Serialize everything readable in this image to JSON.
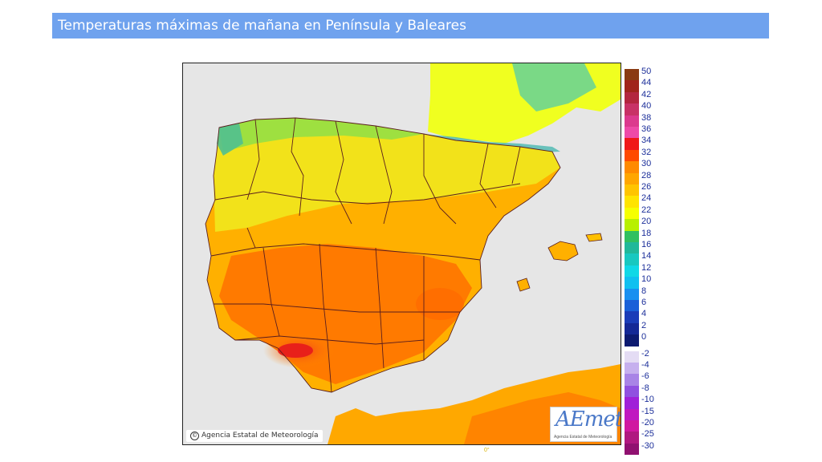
{
  "header": {
    "title": "Temperaturas máximas de mañana en Península y Baleares"
  },
  "map": {
    "credit": "Agencia Estatal de Meteorología",
    "logo_text": "AEmet",
    "logo_subtitle": "Agencia Estatal de Meteorología",
    "bottom_mark": "0°"
  },
  "legend": {
    "positive": [
      {
        "label": "50",
        "color": "#8a3a12"
      },
      {
        "label": "44",
        "color": "#a0241c"
      },
      {
        "label": "42",
        "color": "#b3263f"
      },
      {
        "label": "40",
        "color": "#c83266"
      },
      {
        "label": "38",
        "color": "#dc3a8e"
      },
      {
        "label": "36",
        "color": "#ee4aa8"
      },
      {
        "label": "34",
        "color": "#f01818"
      },
      {
        "label": "32",
        "color": "#ff4a00"
      },
      {
        "label": "30",
        "color": "#ff8a00"
      },
      {
        "label": "28",
        "color": "#ffa600"
      },
      {
        "label": "26",
        "color": "#ffc400"
      },
      {
        "label": "24",
        "color": "#ffe400"
      },
      {
        "label": "22",
        "color": "#f6ff00"
      },
      {
        "label": "20",
        "color": "#b8f000"
      },
      {
        "label": "18",
        "color": "#30c060"
      },
      {
        "label": "16",
        "color": "#20b89a"
      },
      {
        "label": "14",
        "color": "#18c8c0"
      },
      {
        "label": "12",
        "color": "#10d8e6"
      },
      {
        "label": "10",
        "color": "#10c0f0"
      },
      {
        "label": "8",
        "color": "#1890f0"
      },
      {
        "label": "6",
        "color": "#1a60d8"
      },
      {
        "label": "4",
        "color": "#1a3cb8"
      },
      {
        "label": "2",
        "color": "#142896"
      },
      {
        "label": "0",
        "color": "#0c1a70"
      }
    ],
    "negative": [
      {
        "label": "-2",
        "color": "#e4dcf4"
      },
      {
        "label": "-4",
        "color": "#c6b0ee"
      },
      {
        "label": "-6",
        "color": "#a884e6"
      },
      {
        "label": "-8",
        "color": "#9050e0"
      },
      {
        "label": "-10",
        "color": "#a020d8"
      },
      {
        "label": "-15",
        "color": "#c018c0"
      },
      {
        "label": "-20",
        "color": "#d018a0"
      },
      {
        "label": "-25",
        "color": "#b01880"
      },
      {
        "label": "-30",
        "color": "#901070"
      }
    ]
  }
}
